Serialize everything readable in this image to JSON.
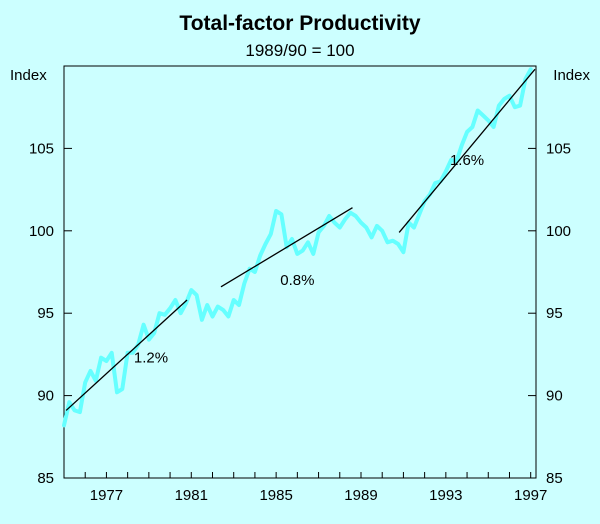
{
  "chart_data": {
    "type": "line",
    "title": "Total-factor Productivity",
    "subtitle": "1989/90 = 100",
    "y_unit_label": "Index",
    "ylim": [
      85,
      110
    ],
    "xlim": [
      1975.0,
      1997.25
    ],
    "y_ticks": [
      "85",
      "90",
      "95",
      "100",
      "105"
    ],
    "x_ticks": [
      "1977",
      "1981",
      "1985",
      "1989",
      "1993",
      "1997"
    ],
    "grid": false,
    "series": [
      {
        "name": "Total-factor productivity",
        "color": "#66ffff",
        "x": [
          1975.0,
          1975.25,
          1975.5,
          1975.75,
          1976.0,
          1976.25,
          1976.5,
          1976.75,
          1977.0,
          1977.25,
          1977.5,
          1977.75,
          1978.0,
          1978.25,
          1978.5,
          1978.75,
          1979.0,
          1979.25,
          1979.5,
          1979.75,
          1980.0,
          1980.25,
          1980.5,
          1980.75,
          1981.0,
          1981.25,
          1981.5,
          1981.75,
          1982.0,
          1982.25,
          1982.5,
          1982.75,
          1983.0,
          1983.25,
          1983.5,
          1983.75,
          1984.0,
          1984.25,
          1984.5,
          1984.75,
          1985.0,
          1985.25,
          1985.5,
          1985.75,
          1986.0,
          1986.25,
          1986.5,
          1986.75,
          1987.0,
          1987.25,
          1987.5,
          1987.75,
          1988.0,
          1988.25,
          1988.5,
          1988.75,
          1989.0,
          1989.25,
          1989.5,
          1989.75,
          1990.0,
          1990.25,
          1990.5,
          1990.75,
          1991.0,
          1991.25,
          1991.5,
          1991.75,
          1992.0,
          1992.25,
          1992.5,
          1992.75,
          1993.0,
          1993.25,
          1993.5,
          1993.75,
          1994.0,
          1994.25,
          1994.5,
          1994.75,
          1995.0,
          1995.25,
          1995.5,
          1995.75,
          1996.0,
          1996.25,
          1996.5,
          1996.75,
          1997.0
        ],
        "values": [
          88.2,
          89.6,
          89.1,
          89.0,
          90.8,
          91.5,
          90.9,
          92.3,
          92.1,
          92.6,
          90.2,
          90.4,
          92.6,
          92.6,
          93.1,
          94.3,
          93.4,
          93.8,
          95.0,
          94.9,
          95.3,
          95.8,
          95.0,
          95.6,
          96.4,
          96.1,
          94.6,
          95.5,
          94.8,
          95.4,
          95.2,
          94.8,
          95.8,
          95.5,
          96.8,
          97.7,
          97.5,
          98.5,
          99.2,
          99.8,
          101.2,
          101.0,
          99.0,
          99.5,
          98.6,
          98.8,
          99.3,
          98.6,
          99.9,
          100.3,
          100.9,
          100.5,
          100.2,
          100.7,
          101.1,
          100.9,
          100.5,
          100.2,
          99.6,
          100.3,
          100.0,
          99.3,
          99.4,
          99.2,
          98.7,
          100.5,
          100.2,
          101.0,
          101.8,
          102.2,
          102.9,
          103.0,
          103.6,
          104.3,
          104.2,
          105.2,
          106.0,
          106.3,
          107.3,
          107.0,
          106.7,
          106.3,
          107.6,
          108.0,
          108.2,
          107.5,
          107.6,
          109.2,
          109.8
        ]
      }
    ],
    "trend_lines": [
      {
        "label": "1.2%",
        "x": [
          1975.1,
          1980.8
        ],
        "y": [
          89.1,
          95.8
        ]
      },
      {
        "label": "0.8%",
        "x": [
          1982.4,
          1988.6
        ],
        "y": [
          96.6,
          101.4
        ]
      },
      {
        "label": "1.6%",
        "x": [
          1990.8,
          1997.2
        ],
        "y": [
          99.9,
          109.8
        ]
      }
    ],
    "annotations": [
      {
        "text": "1.2%",
        "x": 1979.1,
        "y": 92.0
      },
      {
        "text": "0.8%",
        "x": 1986.0,
        "y": 96.7
      },
      {
        "text": "1.6%",
        "x": 1994.0,
        "y": 104.0
      }
    ]
  }
}
